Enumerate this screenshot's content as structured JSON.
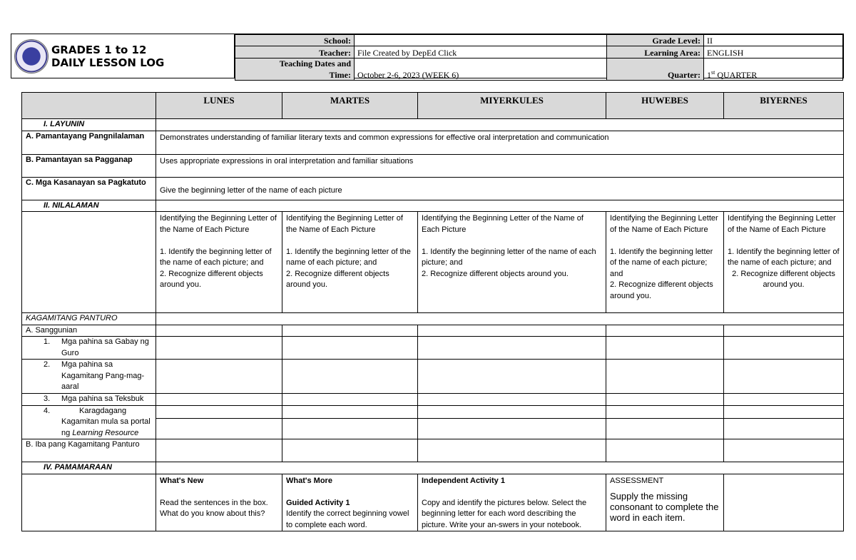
{
  "header": {
    "title_line1": "GRADES 1 to 12",
    "title_line2": "DAILY LESSON LOG",
    "school_label": "School:",
    "school_value": "",
    "teacher_label": "Teacher:",
    "teacher_value": "File Created by DepEd Click",
    "dates_label_1": "Teaching Dates and",
    "dates_label_2": "Time:",
    "dates_value": "October 2-6, 2023 (WEEK 6)",
    "grade_label": "Grade Level:",
    "grade_value": "II",
    "area_label": "Learning Area:",
    "area_value": "ENGLISH",
    "quarter_label": "Quarter:",
    "quarter_num": "1",
    "quarter_sup": "st",
    "quarter_value": " QUARTER"
  },
  "days": [
    "LUNES",
    "MARTES",
    "MIYERKULES",
    "HUWEBES",
    "BIYERNES"
  ],
  "rows": {
    "layunin": "I.   LAYUNIN",
    "a_label": "A.    Pamantayang Pangnilalaman",
    "a_value": "Demonstrates understanding of familiar literary texts and common expressions for effective oral interpretation and communication",
    "b_label": "B.    Pamantayan sa Pagganap",
    "b_value": "Uses appropriate expressions in oral interpretation and familiar situations",
    "c_label": "C.  Mga Kasanayan sa Pagkatuto",
    "c_value": "Give the beginning letter of the name of each picture",
    "nilalaman": "II.          NILALAMAN",
    "content": [
      [
        "Identifying the Beginning Letter of the Name of Each Picture",
        "1. Identify the beginning letter of the name of each picture; and",
        "2. Recognize different objects around you."
      ],
      [
        "Identifying the Beginning Letter of the Name of Each Picture",
        "1. Identify the beginning letter of the name of each picture; and",
        "2. Recognize different objects around you."
      ],
      [
        "Identifying the Beginning Letter of the Name of Each Picture",
        "1. Identify the beginning letter of the name of each picture; and",
        "2. Recognize different objects around you."
      ],
      [
        "Identifying the Beginning Letter of the Name of Each Picture",
        "1. Identify the beginning letter of the name of each picture; and",
        "2. Recognize different objects around you."
      ],
      [
        "Identifying the Beginning Letter of the Name of Each Picture",
        "1. Identify the beginning letter of the name of each picture; and",
        "2. Recognize different objects around you."
      ]
    ],
    "kagamitan": "KAGAMITANG PANTURO",
    "sanggunian": "A.    Sanggunian",
    "s1_num": "1.",
    "s1": "Mga pahina sa Gabay ng Guro",
    "s2_num": "2.",
    "s2": "Mga pahina sa Kagamitang Pang-mag-aaral",
    "s3_num": "3.",
    "s3": "Mga pahina sa Teksbuk",
    "s4_num": "4.",
    "s4": "Karagdagang Kagamitan mula sa portal ng",
    "s4_italic": "Learning Resource",
    "iba": "B.    Iba pang Kagamitang Panturo",
    "pamamaraan": "IV.          PAMAMARAAN"
  },
  "procedure": {
    "lunes_title": "What's New",
    "lunes_text": "Read the sentences in the box. What do you know about this?",
    "martes_title": "What's More",
    "martes_sub": "Guided Activity 1",
    "martes_text": "Identify the correct beginning vowel to complete each word.",
    "miyerkules_title": "Independent Activity 1",
    "miyerkules_text": "Copy and identify the pictures below. Select the beginning letter for each word describing the picture. Write your an-swers in your notebook.",
    "huwebes_title": "ASSESSMENT",
    "huwebes_text": "Supply the missing consonant to complete the word in each item."
  }
}
